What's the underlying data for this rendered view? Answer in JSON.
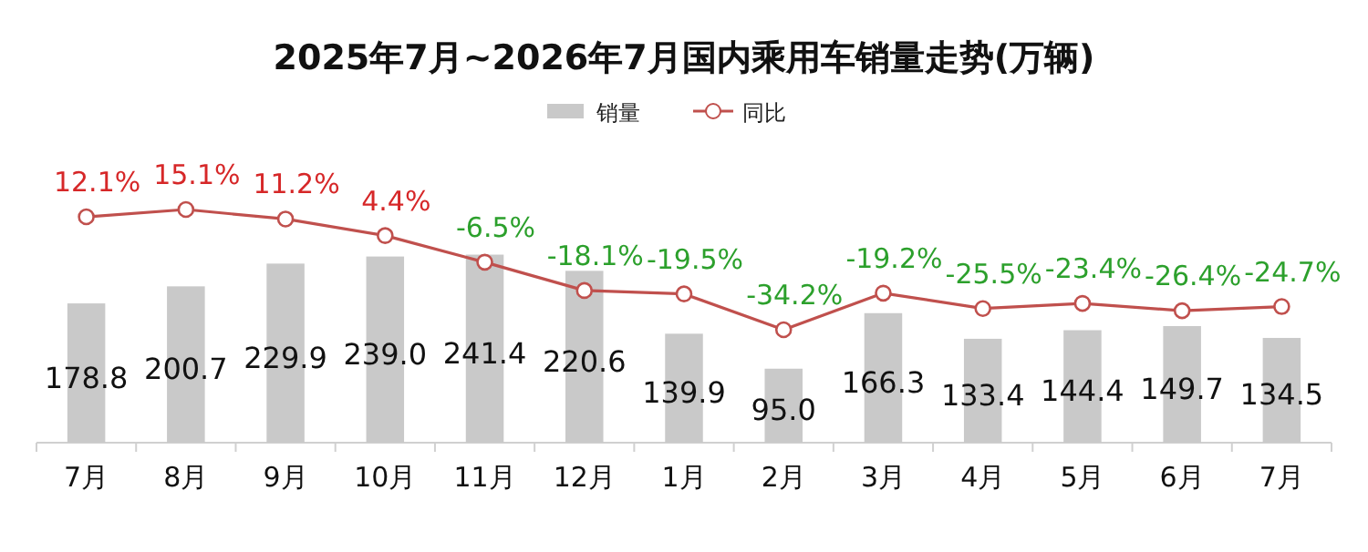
{
  "chart_data": {
    "type": "bar",
    "title": "2025年7月~2026年7月国内乘用车销量走势(万辆)",
    "categories": [
      "7月",
      "8月",
      "9月",
      "10月",
      "11月",
      "12月",
      "1月",
      "2月",
      "3月",
      "4月",
      "5月",
      "6月",
      "7月"
    ],
    "tick_labels": "x",
    "legend": "top",
    "marker": "circle",
    "line_style": "solid",
    "series": [
      {
        "name": "销量",
        "color": "#c9c9c9",
        "values": [
          178.8,
          200.7,
          229.9,
          239.0,
          241.4,
          220.6,
          139.9,
          95.0,
          166.3,
          133.4,
          144.4,
          149.7,
          134.5
        ],
        "value_labels": [
          "178.8",
          "200.7",
          "229.9",
          "239.0",
          "241.4",
          "220.6",
          "139.9",
          "95.0",
          "166.3",
          "133.4",
          "144.4",
          "149.7",
          "134.5"
        ]
      },
      {
        "name": "同比",
        "type": "line",
        "axis": "y2",
        "color": "#c0504d",
        "values": [
          12.1,
          15.1,
          11.2,
          4.4,
          -6.5,
          -18.1,
          -19.5,
          -34.2,
          -19.2,
          -25.5,
          -23.4,
          -26.4,
          -24.7
        ],
        "value_labels": [
          "12.1%",
          "15.1%",
          "11.2%",
          "4.4%",
          "-6.5%",
          "-18.1%",
          "-19.5%",
          "-34.2%",
          "-19.2%",
          "-25.5%",
          "-23.4%",
          "-26.4%",
          "-24.7%"
        ]
      }
    ]
  }
}
